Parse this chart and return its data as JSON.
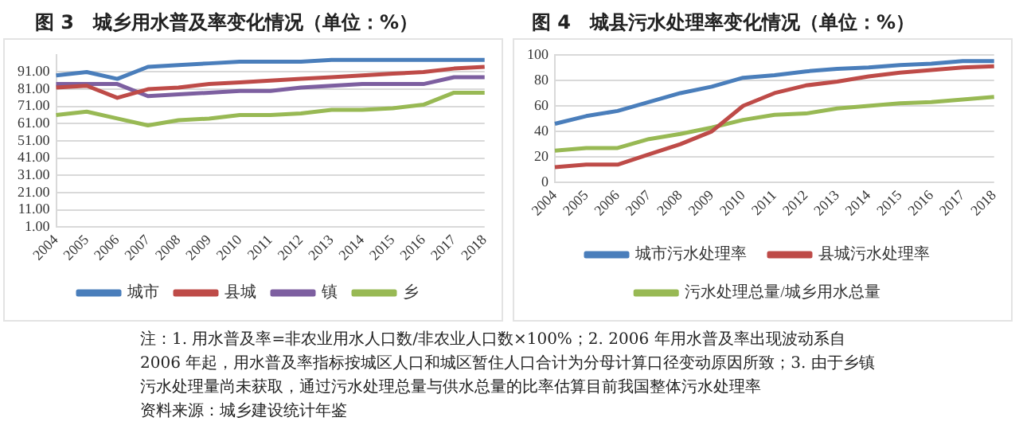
{
  "chart_data": [
    {
      "type": "line",
      "title": "图 3　城乡用水普及率变化情况（单位：%）",
      "categories": [
        "2004",
        "2005",
        "2006",
        "2007",
        "2008",
        "2009",
        "2010",
        "2011",
        "2012",
        "2013",
        "2014",
        "2015",
        "2016",
        "2017",
        "2018"
      ],
      "series": [
        {
          "name": "城市",
          "color": "#4a7ebb",
          "values": [
            89,
            91,
            87,
            94,
            95,
            96,
            97,
            97,
            97,
            98,
            98,
            98,
            98,
            98,
            98
          ]
        },
        {
          "name": "县城",
          "color": "#be4b48",
          "values": [
            82,
            83,
            76,
            81,
            82,
            84,
            85,
            86,
            87,
            88,
            89,
            90,
            91,
            93,
            94
          ]
        },
        {
          "name": "镇",
          "color": "#7d5fa0",
          "values": [
            84,
            84,
            84,
            77,
            78,
            79,
            80,
            80,
            82,
            83,
            84,
            84,
            84,
            88,
            88
          ]
        },
        {
          "name": "乡",
          "color": "#98b954",
          "values": [
            66,
            68,
            64,
            60,
            63,
            64,
            66,
            66,
            67,
            69,
            69,
            70,
            72,
            79,
            79
          ]
        }
      ],
      "ylim": [
        1,
        101
      ],
      "yticks": [
        {
          "value": 1,
          "label": "1.00"
        },
        {
          "value": 11,
          "label": "11.00"
        },
        {
          "value": 21,
          "label": "21.00"
        },
        {
          "value": 31,
          "label": "31.00"
        },
        {
          "value": 41,
          "label": "41.00"
        },
        {
          "value": 51,
          "label": "51.00"
        },
        {
          "value": 61,
          "label": "61.00"
        },
        {
          "value": 71,
          "label": "71.00"
        },
        {
          "value": 81,
          "label": "81.00"
        },
        {
          "value": 91,
          "label": "91.00"
        }
      ],
      "grid": "y",
      "legend": "bottom",
      "marker": "none",
      "annotations": [
        "注：1. 用水普及率=非农业用水人口数/非农业人口数×100%；2. 2006 年用水普及率出现波动系自 2006 年起，用水普及率指标按城区人口和城区暂住人口合计为分母计算口径变动原因所致；3. 由于乡镇污水处理量尚未获取，通过污水处理总量与供水总量的比率估算目前我国整体污水处理率",
        "资料来源：城乡建设统计年鉴"
      ]
    },
    {
      "type": "line",
      "title": "图 4　城县污水处理率变化情况（单位：%）",
      "categories": [
        "2004",
        "2005",
        "2006",
        "2007",
        "2008",
        "2009",
        "2010",
        "2011",
        "2012",
        "2013",
        "2014",
        "2015",
        "2016",
        "2017",
        "2018"
      ],
      "series": [
        {
          "name": "城市污水处理率",
          "color": "#4a7ebb",
          "values": [
            46,
            52,
            56,
            63,
            70,
            75,
            82,
            84,
            87,
            89,
            90,
            92,
            93,
            95,
            95
          ]
        },
        {
          "name": "县城污水处理率",
          "color": "#be4b48",
          "values": [
            12,
            14,
            14,
            22,
            30,
            40,
            60,
            70,
            76,
            79,
            83,
            86,
            88,
            90,
            91
          ]
        },
        {
          "name": "污水处理总量/城乡用水总量",
          "color": "#98b954",
          "values": [
            25,
            27,
            27,
            34,
            38,
            43,
            49,
            53,
            54,
            58,
            60,
            62,
            63,
            65,
            67
          ]
        }
      ],
      "ylim": [
        0,
        100
      ],
      "yticks": [
        0,
        20,
        40,
        60,
        80,
        100
      ],
      "grid": "y",
      "legend": "bottom",
      "marker": "none"
    }
  ]
}
